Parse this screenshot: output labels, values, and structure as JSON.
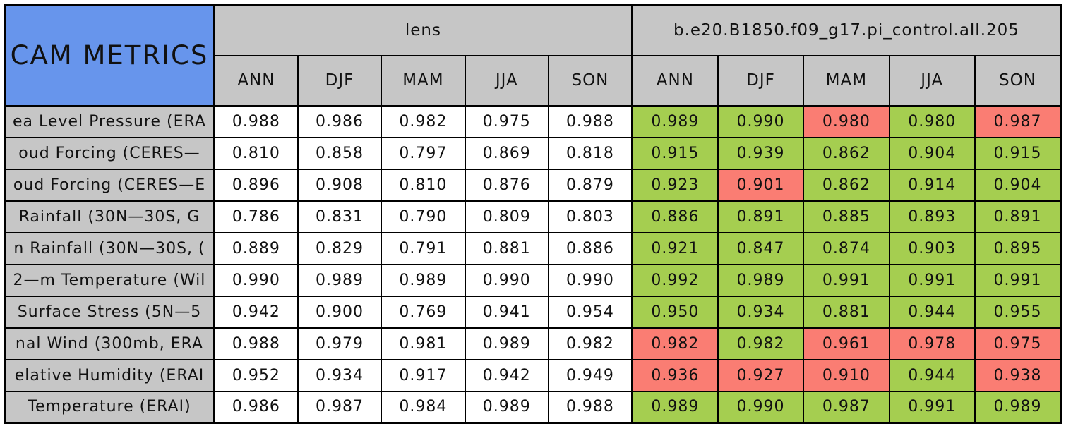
{
  "chart_data": {
    "type": "table",
    "title": "CAM METRICS",
    "column_groups": [
      "lens",
      "b.e20.B1850.f09_g17.pi_control.all.205"
    ],
    "seasons": [
      "ANN",
      "DJF",
      "MAM",
      "JJA",
      "SON"
    ],
    "rows": [
      {
        "label": "ea Level Pressure (ERA",
        "lens": [
          "0.988",
          "0.986",
          "0.982",
          "0.975",
          "0.988"
        ],
        "model": [
          "0.989",
          "0.990",
          "0.980",
          "0.980",
          "0.987"
        ],
        "model_cell_colors": [
          "green",
          "green",
          "red",
          "green",
          "red"
        ]
      },
      {
        "label": "oud Forcing (CERES—",
        "lens": [
          "0.810",
          "0.858",
          "0.797",
          "0.869",
          "0.818"
        ],
        "model": [
          "0.915",
          "0.939",
          "0.862",
          "0.904",
          "0.915"
        ],
        "model_cell_colors": [
          "green",
          "green",
          "green",
          "green",
          "green"
        ]
      },
      {
        "label": "oud Forcing (CERES—E",
        "lens": [
          "0.896",
          "0.908",
          "0.810",
          "0.876",
          "0.879"
        ],
        "model": [
          "0.923",
          "0.901",
          "0.862",
          "0.914",
          "0.904"
        ],
        "model_cell_colors": [
          "green",
          "red",
          "green",
          "green",
          "green"
        ]
      },
      {
        "label": "Rainfall (30N—30S, G",
        "lens": [
          "0.786",
          "0.831",
          "0.790",
          "0.809",
          "0.803"
        ],
        "model": [
          "0.886",
          "0.891",
          "0.885",
          "0.893",
          "0.891"
        ],
        "model_cell_colors": [
          "green",
          "green",
          "green",
          "green",
          "green"
        ]
      },
      {
        "label": "n Rainfall (30N—30S, (",
        "lens": [
          "0.889",
          "0.829",
          "0.791",
          "0.881",
          "0.886"
        ],
        "model": [
          "0.921",
          "0.847",
          "0.874",
          "0.903",
          "0.895"
        ],
        "model_cell_colors": [
          "green",
          "green",
          "green",
          "green",
          "green"
        ]
      },
      {
        "label": "2—m Temperature (Wil",
        "lens": [
          "0.990",
          "0.989",
          "0.989",
          "0.990",
          "0.990"
        ],
        "model": [
          "0.992",
          "0.989",
          "0.991",
          "0.991",
          "0.991"
        ],
        "model_cell_colors": [
          "green",
          "green",
          "green",
          "green",
          "green"
        ]
      },
      {
        "label": "Surface Stress (5N—5",
        "lens": [
          "0.942",
          "0.900",
          "0.769",
          "0.941",
          "0.954"
        ],
        "model": [
          "0.950",
          "0.934",
          "0.881",
          "0.944",
          "0.955"
        ],
        "model_cell_colors": [
          "green",
          "green",
          "green",
          "green",
          "green"
        ]
      },
      {
        "label": "nal Wind (300mb, ERA",
        "lens": [
          "0.988",
          "0.979",
          "0.981",
          "0.989",
          "0.982"
        ],
        "model": [
          "0.982",
          "0.982",
          "0.961",
          "0.978",
          "0.975"
        ],
        "model_cell_colors": [
          "red",
          "green",
          "red",
          "red",
          "red"
        ]
      },
      {
        "label": "elative Humidity (ERAI",
        "lens": [
          "0.952",
          "0.934",
          "0.917",
          "0.942",
          "0.949"
        ],
        "model": [
          "0.936",
          "0.927",
          "0.910",
          "0.944",
          "0.938"
        ],
        "model_cell_colors": [
          "red",
          "red",
          "red",
          "green",
          "red"
        ]
      },
      {
        "label": "Temperature (ERAI)",
        "lens": [
          "0.986",
          "0.987",
          "0.984",
          "0.989",
          "0.988"
        ],
        "model": [
          "0.989",
          "0.990",
          "0.987",
          "0.991",
          "0.989"
        ],
        "model_cell_colors": [
          "green",
          "green",
          "green",
          "green",
          "green"
        ]
      }
    ]
  },
  "colors": {
    "title_bg": "#6795EC",
    "header_bg": "#C6C6C6",
    "good_green": "#A5CE50",
    "bad_red": "#FA7D73",
    "cell_white": "#FFFFFF",
    "border_black": "#000000"
  }
}
